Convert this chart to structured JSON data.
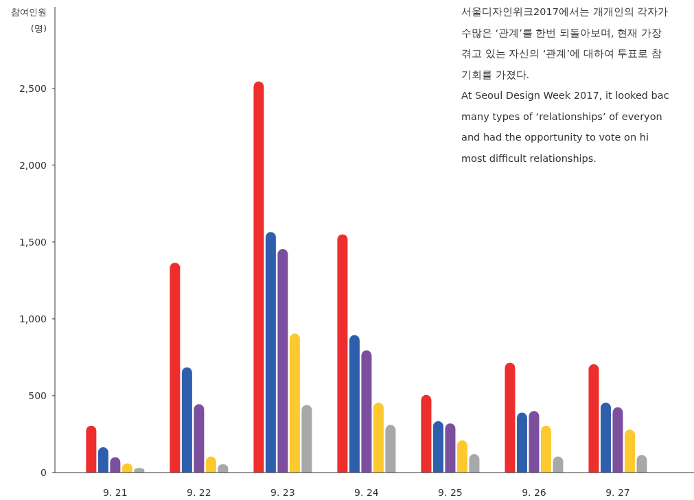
{
  "chart_data": {
    "type": "bar",
    "ylabel": "참여인원\n(명)",
    "categories": [
      "9. 21",
      "9. 22",
      "9. 23",
      "9. 24",
      "9. 25",
      "9. 26",
      "9. 27"
    ],
    "series": [
      {
        "color": "#ee2d2d",
        "values": [
          305,
          1365,
          2545,
          1550,
          505,
          715,
          705
        ]
      },
      {
        "color": "#2e5fac",
        "values": [
          165,
          685,
          1565,
          895,
          335,
          390,
          455
        ]
      },
      {
        "color": "#7b4f9e",
        "values": [
          100,
          445,
          1455,
          795,
          320,
          400,
          425
        ]
      },
      {
        "color": "#fdc92f",
        "values": [
          60,
          105,
          905,
          455,
          210,
          305,
          280
        ]
      },
      {
        "color": "#a7a8aa",
        "values": [
          30,
          55,
          440,
          310,
          120,
          105,
          115
        ]
      }
    ],
    "ylim": [
      0,
      3030
    ],
    "yticks": [
      0,
      500,
      {
        "value": 1000,
        "label": "1,000"
      },
      {
        "value": 1500,
        "label": "1,500"
      },
      {
        "value": 2000,
        "label": "2,000"
      },
      {
        "value": 2500,
        "label": "2,500"
      }
    ],
    "annotations": [
      "서울디자인위크2017에서는 개개인의 각자가\n수많은 ‘관계’를 한번 되돌아보며, 현재 가장\n겪고 있는 자신의 ‘관계’에 대하여 투표로 참\n기회를 가졌다.",
      "At Seoul Design Week 2017, it looked bac\nmany types of ‘relationships’ of everyon\nand had the opportunity to vote on hi\nmost difficult relationships."
    ]
  }
}
